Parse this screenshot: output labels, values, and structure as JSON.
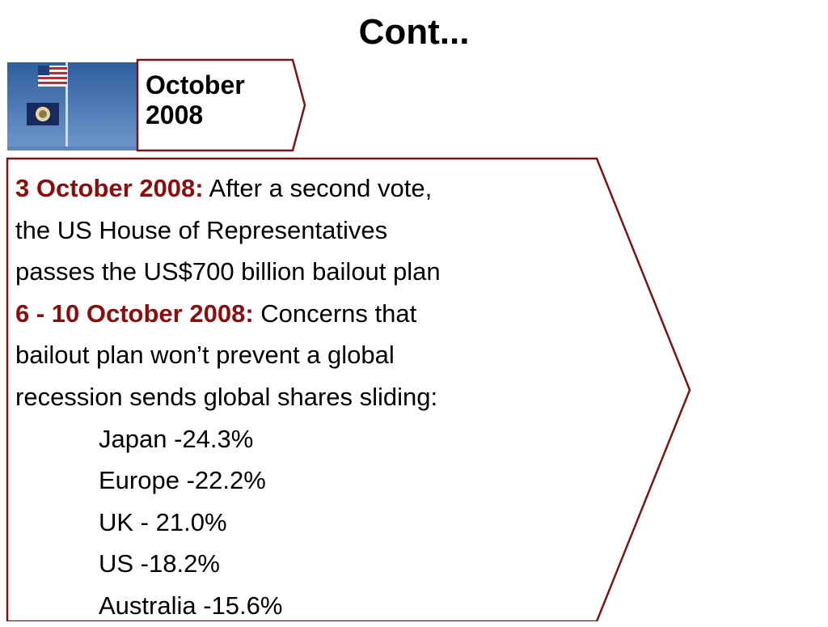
{
  "slide": {
    "title": "Cont..."
  },
  "colors": {
    "accent": "#8b0d0d",
    "outline": "#7a1418"
  },
  "photo": {
    "icon": "us-flags-photo"
  },
  "date_tag": {
    "line1": "October",
    "line2": "2008"
  },
  "timeline": {
    "entry1_date": "3 October 2008:",
    "entry1_lines": [
      " After a second vote,",
      "the US House of Representatives",
      "passes the US$700 billion bailout plan"
    ],
    "entry2_date": "6 - 10 October 2008:",
    "entry2_lines": [
      " Concerns that",
      "bailout plan won’t prevent a global",
      "recession sends global shares sliding:"
    ],
    "share_changes": [
      "Japan -24.3%",
      "Europe -22.2%",
      "UK - 21.0%",
      "US -18.2%",
      "Australia -15.6%"
    ]
  }
}
